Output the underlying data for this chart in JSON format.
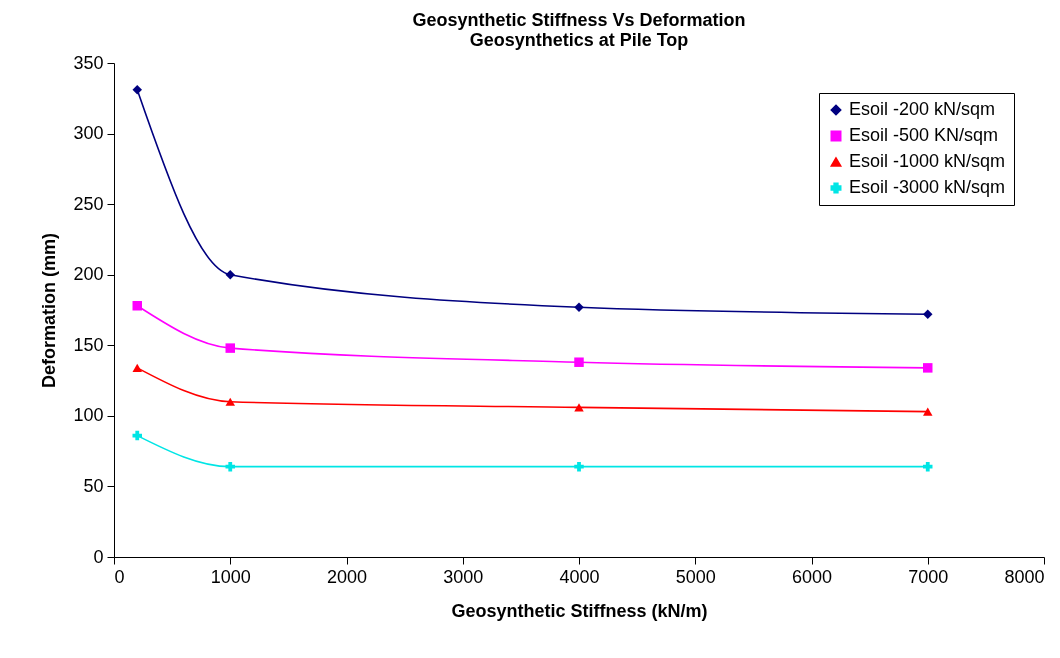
{
  "chart_data": {
    "type": "line",
    "title": "Geosynthetic Stiffness Vs Deformation",
    "subtitle": "Geosynthetics at Pile Top",
    "xlabel": "Geosynthetic Stiffness (kN/m)",
    "ylabel": "Deformation (mm)",
    "x": [
      200,
      1000,
      4000,
      7000
    ],
    "series": [
      {
        "name": "Esoil -200 kN/sqm",
        "color": "#000080",
        "marker": "diamond",
        "values": [
          331,
          200,
          177,
          172
        ]
      },
      {
        "name": "Esoil -500 KN/sqm",
        "color": "#ff00ff",
        "marker": "square",
        "values": [
          178,
          148,
          138,
          134
        ]
      },
      {
        "name": "Esoil -1000 kN/sqm",
        "color": "#ff0000",
        "marker": "triangle",
        "values": [
          134,
          110,
          106,
          103
        ]
      },
      {
        "name": "Esoil -3000 kN/sqm",
        "color": "#00e5e5",
        "marker": "cross",
        "values": [
          86,
          64,
          64,
          64
        ]
      }
    ],
    "xlim": [
      0,
      8000
    ],
    "xticks": [
      0,
      1000,
      2000,
      3000,
      4000,
      5000,
      6000,
      7000,
      8000
    ],
    "ylim": [
      0,
      350
    ],
    "yticks": [
      0,
      50,
      100,
      150,
      200,
      250,
      300,
      350
    ],
    "grid": false,
    "legend": "top right"
  }
}
